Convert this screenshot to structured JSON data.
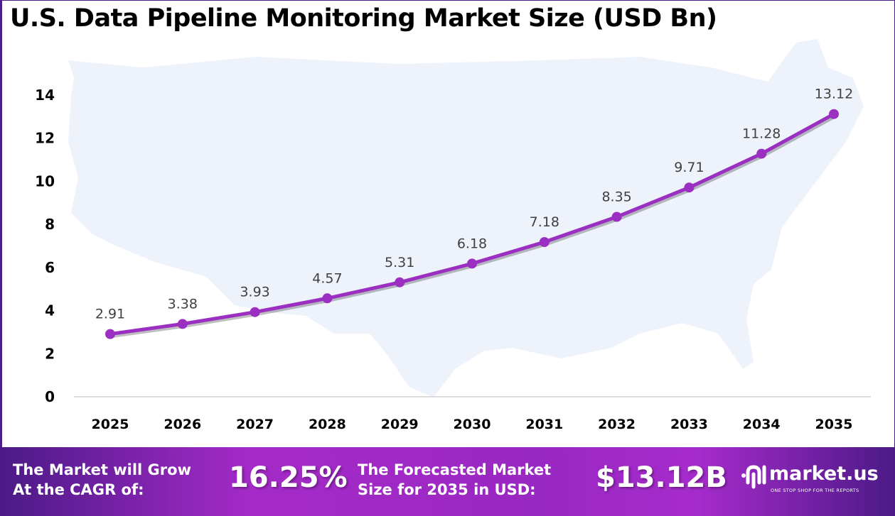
{
  "title": "U.S. Data Pipeline Monitoring Market Size (USD Bn)",
  "chart_data": {
    "type": "line",
    "title": "U.S. Data Pipeline Monitoring Market Size (USD Bn)",
    "categories": [
      "2025",
      "2026",
      "2027",
      "2028",
      "2029",
      "2030",
      "2031",
      "2032",
      "2033",
      "2034",
      "2035"
    ],
    "values": [
      2.91,
      3.38,
      3.93,
      4.57,
      5.31,
      6.18,
      7.18,
      8.35,
      9.71,
      11.28,
      13.12
    ],
    "data_labels": [
      "2.91",
      "3.38",
      "3.93",
      "4.57",
      "5.31",
      "6.18",
      "7.18",
      "8.35",
      "9.71",
      "11.28",
      "13.12"
    ],
    "yticks": [
      "0",
      "2",
      "4",
      "6",
      "8",
      "10",
      "12",
      "14"
    ],
    "ylim": [
      0,
      14
    ],
    "grid": false,
    "line_color": "#9b2fc1",
    "background": "U.S. map silhouette"
  },
  "banner": {
    "cagr_label_1": "The Market will Grow",
    "cagr_label_2": "At the CAGR of:",
    "cagr_value": "16.25%",
    "forecast_label_1": "The Forecasted Market",
    "forecast_label_2": "Size for 2035 in USD:",
    "forecast_value": "$13.12B",
    "logo_name": "market.us",
    "logo_tagline": "ONE STOP SHOP FOR THE REPORTS"
  }
}
